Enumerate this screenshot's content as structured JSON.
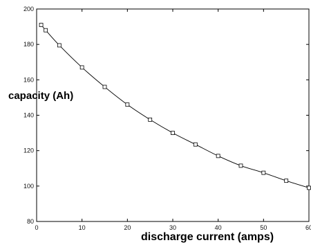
{
  "chart_data": {
    "type": "line",
    "title": "",
    "xlabel": "discharge current (amps)",
    "ylabel": "capacity (Ah)",
    "xlim": [
      0,
      60
    ],
    "ylim": [
      80,
      200
    ],
    "xticks": [
      0,
      10,
      20,
      30,
      40,
      50,
      60
    ],
    "yticks": [
      80,
      100,
      120,
      140,
      160,
      180,
      200
    ],
    "grid": false,
    "marker": "square",
    "series": [
      {
        "x": [
          1,
          2,
          5,
          10,
          15,
          20,
          25,
          30,
          35,
          40,
          45,
          50,
          55,
          60
        ],
        "y": [
          191,
          188,
          179.5,
          167,
          156,
          146,
          137.5,
          130,
          123.5,
          117,
          111.5,
          107.5,
          103,
          99
        ]
      }
    ]
  }
}
